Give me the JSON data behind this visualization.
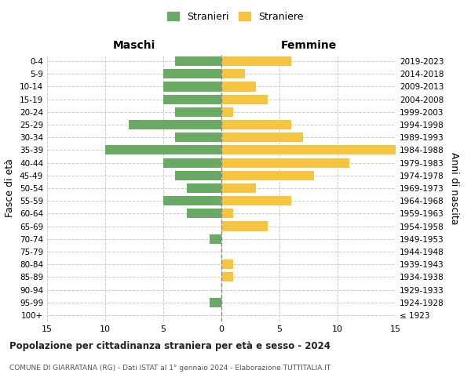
{
  "age_groups": [
    "100+",
    "95-99",
    "90-94",
    "85-89",
    "80-84",
    "75-79",
    "70-74",
    "65-69",
    "60-64",
    "55-59",
    "50-54",
    "45-49",
    "40-44",
    "35-39",
    "30-34",
    "25-29",
    "20-24",
    "15-19",
    "10-14",
    "5-9",
    "0-4"
  ],
  "birth_years": [
    "≤ 1923",
    "1924-1928",
    "1929-1933",
    "1934-1938",
    "1939-1943",
    "1944-1948",
    "1949-1953",
    "1954-1958",
    "1959-1963",
    "1964-1968",
    "1969-1973",
    "1974-1978",
    "1979-1983",
    "1984-1988",
    "1989-1993",
    "1994-1998",
    "1999-2003",
    "2004-2008",
    "2009-2013",
    "2014-2018",
    "2019-2023"
  ],
  "males": [
    0,
    1,
    0,
    0,
    0,
    0,
    1,
    0,
    3,
    5,
    3,
    4,
    5,
    10,
    4,
    8,
    4,
    5,
    5,
    5,
    4
  ],
  "females": [
    0,
    0,
    0,
    1,
    1,
    0,
    0,
    4,
    1,
    6,
    3,
    8,
    11,
    15,
    7,
    6,
    1,
    4,
    3,
    2,
    6
  ],
  "male_color": "#6aaa64",
  "female_color": "#f5c542",
  "grid_color": "#cccccc",
  "title": "Popolazione per cittadinanza straniera per età e sesso - 2024",
  "subtitle": "COMUNE DI GIARRATANA (RG) - Dati ISTAT al 1° gennaio 2024 - Elaborazione TUTTITALIA.IT",
  "xlabel_left": "Maschi",
  "xlabel_right": "Femmine",
  "ylabel_left": "Fasce di età",
  "ylabel_right": "Anni di nascita",
  "xlim": 15,
  "legend_stranieri": "Stranieri",
  "legend_straniere": "Straniere"
}
